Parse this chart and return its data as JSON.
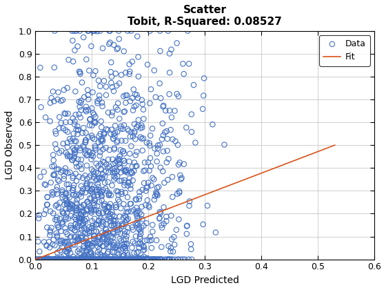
{
  "title_line1": "Scatter",
  "title_line2": "Tobit, R-Squared: 0.08527",
  "xlabel": "LGD Predicted",
  "ylabel": "LGD Observed",
  "scatter_color": "#4472C4",
  "fit_color": "#D95319",
  "xlim": [
    0,
    0.6
  ],
  "ylim": [
    0,
    1.0
  ],
  "xticks": [
    0.0,
    0.1,
    0.2,
    0.3,
    0.4,
    0.5,
    0.6
  ],
  "yticks": [
    0.0,
    0.1,
    0.2,
    0.3,
    0.4,
    0.5,
    0.6,
    0.7,
    0.8,
    0.9,
    1.0
  ],
  "fit_x": [
    0.0,
    0.53
  ],
  "fit_y": [
    0.0,
    0.5
  ],
  "marker_size": 28,
  "marker_linewidth": 0.8,
  "legend_loc": "upper right",
  "seed": 42,
  "n_points": 2000,
  "background_color": "#ffffff",
  "grid_color": "#c8c8c8"
}
